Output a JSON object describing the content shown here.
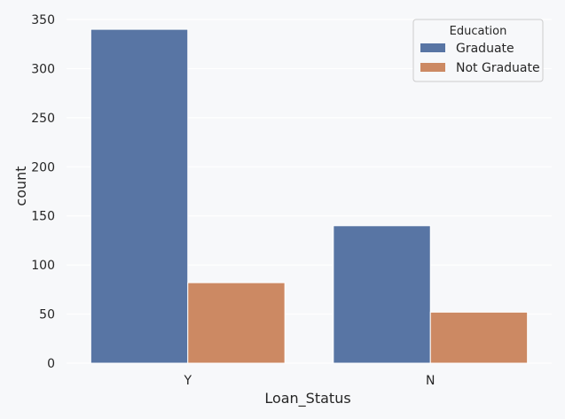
{
  "chart_data": {
    "type": "bar",
    "categories": [
      "Y",
      "N"
    ],
    "series": [
      {
        "name": "Graduate",
        "values": [
          340,
          140
        ],
        "color": "#5875a4"
      },
      {
        "name": "Not Graduate",
        "values": [
          82,
          52
        ],
        "color": "#cc8963"
      }
    ],
    "xlabel": "Loan_Status",
    "ylabel": "count",
    "ylim": [
      0,
      350
    ],
    "yticks": [
      0,
      50,
      100,
      150,
      200,
      250,
      300,
      350
    ],
    "legend": {
      "title": "Education",
      "placement": "top-right"
    },
    "grid": true,
    "background": "#eaeaf2",
    "plot_background": "#f7f8fa"
  }
}
